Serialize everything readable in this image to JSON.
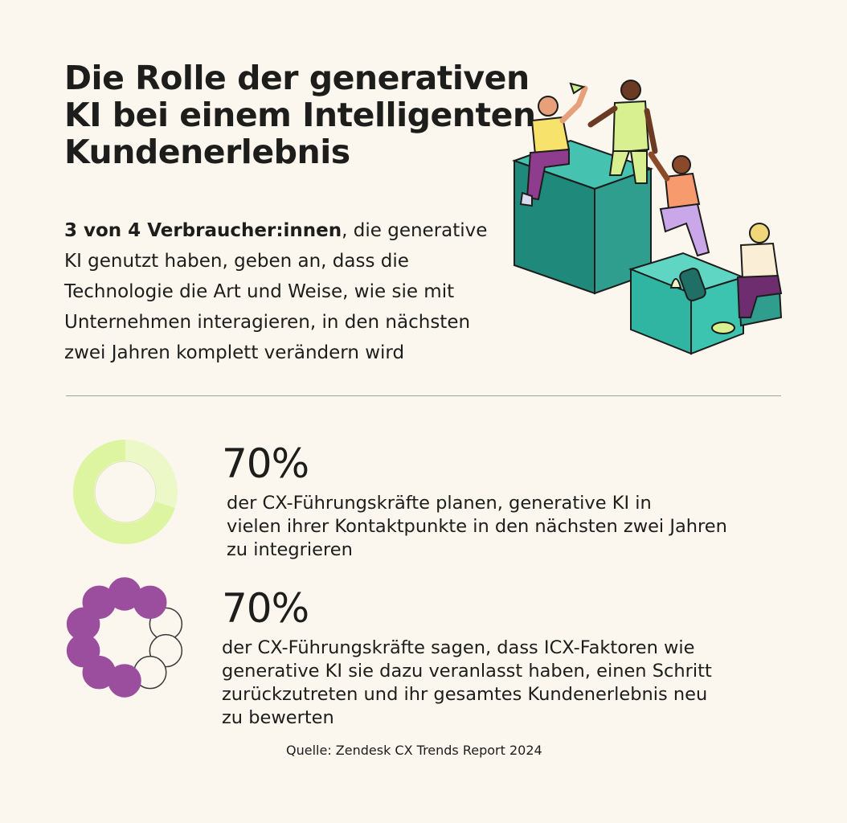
{
  "title_lines": [
    "Die Rolle der generativen",
    "KI bei einem Intelligenten",
    "Kundenerlebnis"
  ],
  "intro": {
    "bold": "3 von 4 Verbraucher:innen",
    "line1_rest": ", die generative",
    "lines": [
      "KI genutzt haben, geben an, dass die",
      "Technologie die Art und Weise, wie sie mit",
      "Unternehmen interagieren, in den nächsten",
      "zwei Jahren komplett verändern wird"
    ]
  },
  "stats": [
    {
      "value": "70%",
      "text_lines": [
        "der CX-Führungskräfte planen, generative KI in",
        "vielen ihrer Kontaktpunkte in den nächsten zwei Jahren",
        "zu integrieren"
      ],
      "fraction": 0.7,
      "color": "#ddf5a0"
    },
    {
      "value": "70%",
      "text_lines": [
        "der CX-Führungskräfte sagen, dass ICX-Faktoren wie",
        "generative KI sie dazu veranlasst haben, einen Schritt",
        "zurückzutreten und ihr gesamtes Kundenerlebnis neu",
        "zu bewerten"
      ],
      "fraction": 0.7,
      "color": "#9b4e9e"
    }
  ],
  "source": "Quelle: Zendesk CX Trends Report 2024",
  "colors": {
    "background": "#fbf6ee",
    "teal": "#2f9e8f",
    "teal_dark": "#1f6f66",
    "lime": "#d8f08f",
    "purple": "#9b4e9e",
    "text": "#1d1d1b"
  },
  "illustration": "people-climbing-blocks-illustration"
}
